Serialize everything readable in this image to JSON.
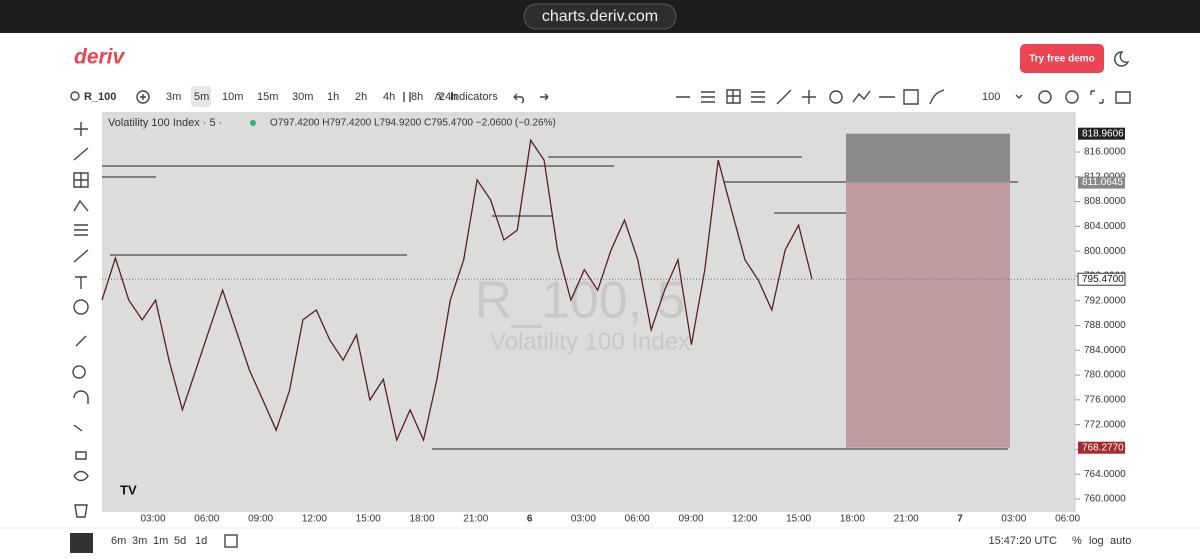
{
  "browser": {
    "url": "charts.deriv.com"
  },
  "header": {
    "logo": "deriv",
    "cta": "Try free demo"
  },
  "toolbar": {
    "symbol": "R_100",
    "timeframes": [
      "3m",
      "5m",
      "10m",
      "15m",
      "30m",
      "1h",
      "2h",
      "4h",
      "8h",
      "24h"
    ],
    "active_timeframe": 1,
    "indicators": "Indicators",
    "zoom": "100"
  },
  "chart": {
    "type": "line",
    "title": "Volatility 100 Index · 5 ·",
    "ohlc": "O797.4200 H797.4200 L794.9200 C795.4700 −2.0600 (−0.26%)",
    "watermark_symbol": "R_100, 5",
    "watermark_name": "Volatility 100 Index",
    "ylim": [
      757.9,
      822.46
    ],
    "yticks": [
      {
        "value": 816,
        "label": "816.0000"
      },
      {
        "value": 812,
        "label": "812.0000"
      },
      {
        "value": 808,
        "label": "808.0000"
      },
      {
        "value": 804,
        "label": "804.0000"
      },
      {
        "value": 800,
        "label": "800.0000"
      },
      {
        "value": 796,
        "label": "796.0000"
      },
      {
        "value": 792,
        "label": "792.0000"
      },
      {
        "value": 788,
        "label": "788.0000"
      },
      {
        "value": 784,
        "label": "784.0000"
      },
      {
        "value": 780,
        "label": "780.0000"
      },
      {
        "value": 776,
        "label": "776.0000"
      },
      {
        "value": 772,
        "label": "772.0000"
      },
      {
        "value": 768,
        "label": "768.0000"
      },
      {
        "value": 764,
        "label": "764.0000"
      },
      {
        "value": 760,
        "label": "760.0000"
      }
    ],
    "price_labels": [
      {
        "value": 818.9606,
        "label": "818.9606",
        "color": "#222222"
      },
      {
        "value": 811.0645,
        "label": "811.0645",
        "color": "#888888"
      },
      {
        "value": 795.47,
        "label": "795.4700",
        "color": "#ffffff"
      },
      {
        "value": 768.277,
        "label": "768.2770",
        "color": "#a52a2a"
      }
    ],
    "close": [
      792.1,
      798.9,
      792.1,
      788.9,
      792.1,
      782.4,
      774.4,
      780.8,
      787.3,
      793.7,
      787.3,
      780.8,
      776.0,
      771.1,
      777.5,
      788.9,
      790.5,
      785.7,
      782.4,
      786.5,
      776.0,
      779.3,
      769.5,
      774.4,
      769.5,
      779.3,
      792.1,
      798.6,
      811.5,
      808.3,
      801.8,
      803.4,
      817.9,
      814.7,
      800.2,
      792.1,
      797.0,
      793.7,
      800.2,
      805.0,
      798.6,
      787.3,
      793.7,
      798.6,
      784.9,
      797.0,
      814.7,
      806.6,
      798.6,
      795.3,
      790.5,
      800.2,
      804.2,
      795.47
    ],
    "xticks": [
      "03:00",
      "06:00",
      "09:00",
      "12:00",
      "15:00",
      "18:00",
      "21:00",
      "6",
      "03:00",
      "06:00",
      "09:00",
      "12:00",
      "15:00",
      "18:00",
      "21:00",
      "7",
      "03:00",
      "06:00"
    ]
  },
  "footer": {
    "periods": [
      "6m",
      "3m",
      "1m",
      "5d",
      "1d"
    ],
    "clock": "15:47:20 UTC",
    "options": [
      "%",
      "log",
      "auto"
    ]
  }
}
